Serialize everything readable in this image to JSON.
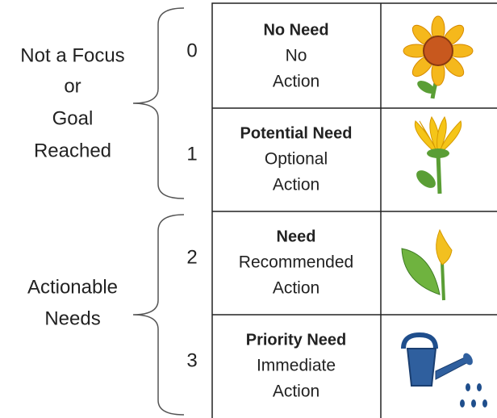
{
  "groups": [
    {
      "label_lines": [
        "Not a Focus",
        "or",
        "Goal",
        "Reached"
      ]
    },
    {
      "label_lines": [
        "Actionable",
        "Needs"
      ]
    }
  ],
  "rows": [
    {
      "level": "0",
      "title": "No Need",
      "description_lines": [
        "No",
        "Action"
      ]
    },
    {
      "level": "1",
      "title": "Potential Need",
      "description_lines": [
        "Optional",
        "Action"
      ]
    },
    {
      "level": "2",
      "title": "Need",
      "description_lines": [
        "Recommended",
        "Action"
      ]
    },
    {
      "level": "3",
      "title": "Priority Need",
      "description_lines": [
        "Immediate",
        "Action"
      ]
    }
  ]
}
